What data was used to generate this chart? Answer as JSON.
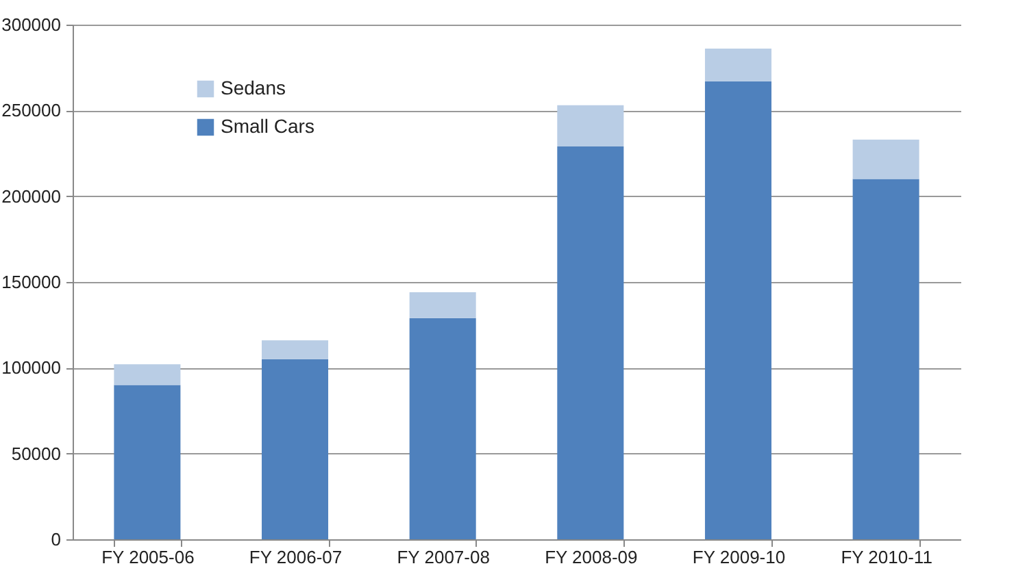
{
  "chart_data": {
    "type": "bar",
    "stacked": true,
    "categories": [
      "FY 2005-06",
      "FY 2006-07",
      "FY 2007-08",
      "FY 2008-09",
      "FY 2009-10",
      "FY 2010-11"
    ],
    "series": [
      {
        "name": "Small Cars",
        "color": "#4f81bd",
        "values": [
          90000,
          105000,
          129000,
          229000,
          267000,
          210000
        ]
      },
      {
        "name": "Sedans",
        "color": "#b9cde5",
        "values": [
          12000,
          11000,
          15000,
          24000,
          19000,
          23000
        ]
      }
    ],
    "ylim": [
      0,
      300000
    ],
    "yticks": [
      0,
      50000,
      100000,
      150000,
      200000,
      250000,
      300000
    ],
    "grid": "y",
    "legend": "top left"
  }
}
